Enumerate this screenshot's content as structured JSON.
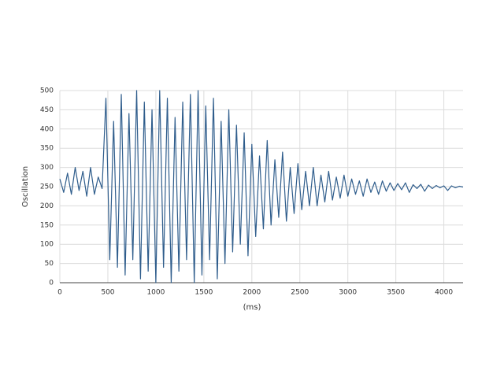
{
  "chart_data": {
    "type": "line",
    "y_label": "Oscillation",
    "x_label": "(ms)",
    "x": [
      0,
      40,
      80,
      120,
      160,
      200,
      240,
      280,
      320,
      360,
      400,
      440,
      480,
      520,
      560,
      600,
      640,
      680,
      720,
      760,
      800,
      840,
      880,
      920,
      960,
      1000,
      1040,
      1080,
      1120,
      1160,
      1200,
      1240,
      1280,
      1320,
      1360,
      1400,
      1440,
      1480,
      1520,
      1560,
      1600,
      1640,
      1680,
      1720,
      1760,
      1800,
      1840,
      1880,
      1920,
      1960,
      2000,
      2040,
      2080,
      2120,
      2160,
      2200,
      2240,
      2280,
      2320,
      2360,
      2400,
      2440,
      2480,
      2520,
      2560,
      2600,
      2640,
      2680,
      2720,
      2760,
      2800,
      2840,
      2880,
      2920,
      2960,
      3000,
      3040,
      3080,
      3120,
      3160,
      3200,
      3240,
      3280,
      3320,
      3360,
      3400,
      3440,
      3480,
      3520,
      3560,
      3600,
      3640,
      3680,
      3720,
      3760,
      3800,
      3840,
      3880,
      3920,
      3960,
      4000,
      4040,
      4080,
      4120,
      4160,
      4200
    ],
    "values": [
      270,
      235,
      285,
      230,
      300,
      240,
      290,
      225,
      300,
      230,
      275,
      245,
      480,
      60,
      420,
      40,
      490,
      20,
      440,
      60,
      500,
      10,
      470,
      30,
      450,
      0,
      500,
      40,
      480,
      0,
      430,
      30,
      470,
      60,
      490,
      0,
      500,
      20,
      460,
      60,
      480,
      10,
      420,
      50,
      450,
      80,
      410,
      100,
      390,
      70,
      360,
      120,
      330,
      140,
      370,
      150,
      320,
      170,
      340,
      160,
      300,
      180,
      310,
      190,
      290,
      200,
      300,
      200,
      280,
      210,
      290,
      215,
      275,
      220,
      280,
      225,
      270,
      230,
      265,
      225,
      270,
      235,
      262,
      230,
      265,
      238,
      260,
      240,
      258,
      242,
      260,
      235,
      255,
      245,
      256,
      238,
      254,
      245,
      253,
      247,
      252,
      240,
      252,
      247,
      251,
      249
    ],
    "color": "#2f5d8c",
    "xlim": [
      0,
      4200
    ],
    "xticks": [
      0,
      500,
      1000,
      1500,
      2000,
      2500,
      3000,
      3500,
      4000
    ],
    "ylim": [
      0,
      500
    ],
    "yticks": [
      0,
      50,
      100,
      150,
      200,
      250,
      300,
      350,
      400,
      450,
      500
    ],
    "grid": true
  }
}
